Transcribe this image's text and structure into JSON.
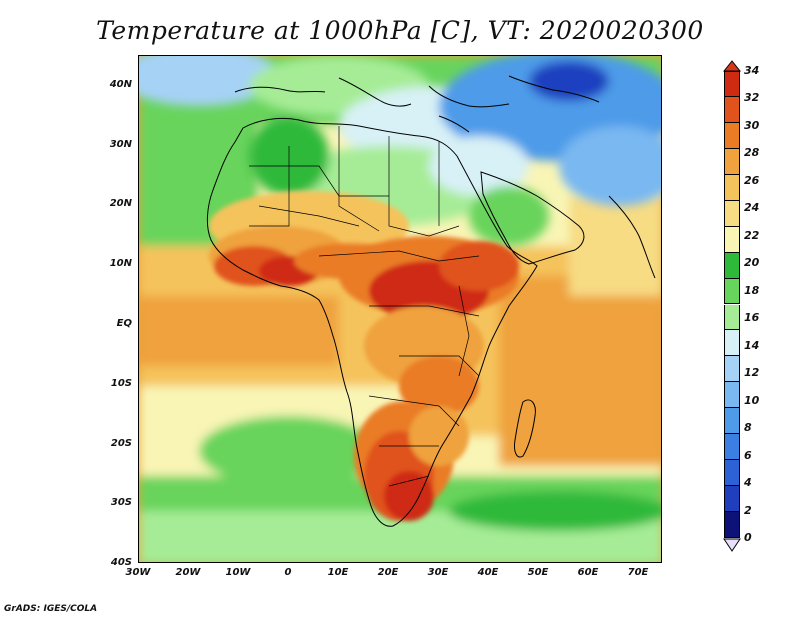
{
  "title": "Temperature at 1000hPa [C], VT: 2020020300",
  "footer": "GrADS: IGES/COLA",
  "map": {
    "lat_labels": [
      "40N",
      "30N",
      "20N",
      "10N",
      "EQ",
      "10S",
      "20S",
      "30S",
      "40S"
    ],
    "lon_labels": [
      "30W",
      "20W",
      "10W",
      "0",
      "10E",
      "20E",
      "30E",
      "40E",
      "50E",
      "60E",
      "70E"
    ],
    "lat_values": [
      40,
      30,
      20,
      10,
      0,
      -10,
      -20,
      -30,
      -40
    ],
    "lon_values": [
      -30,
      -20,
      -10,
      0,
      10,
      20,
      30,
      40,
      50,
      60,
      70
    ],
    "extent": {
      "lon": [
        -30,
        75
      ],
      "lat": [
        -40,
        45
      ]
    },
    "variable": "Temperature at 1000hPa",
    "units": "C",
    "valid_time": "2020020300"
  },
  "colorbar": {
    "levels": [
      0,
      2,
      4,
      6,
      8,
      10,
      12,
      14,
      16,
      18,
      20,
      22,
      24,
      26,
      28,
      30,
      32,
      34
    ],
    "labels": [
      "0",
      "2",
      "4",
      "6",
      "8",
      "10",
      "12",
      "14",
      "16",
      "18",
      "20",
      "22",
      "24",
      "26",
      "28",
      "30",
      "32",
      "34"
    ],
    "colors": [
      "#0c1278",
      "#1f3fbf",
      "#2d61d6",
      "#3b7fe2",
      "#4e9be9",
      "#79b8f1",
      "#a6d2f6",
      "#d8f1f6",
      "#a6ec96",
      "#67d45c",
      "#2fb93a",
      "#f9f5b5",
      "#f7dc84",
      "#f5c35b",
      "#efa23d",
      "#ea7c25",
      "#e0531c",
      "#cf2a12"
    ],
    "under_color": "#e8e0fa",
    "over_color": "#d8361c"
  },
  "colors": {
    "ocean_equatorial": "#efa23d",
    "ocean_warm_band": "#f5c35b",
    "ocean_mid": "#f9f5b5",
    "cool_green": "#67d45c",
    "land_hot": "#cf2a12",
    "sahara_blue": "#a6d2f6",
    "coastline": "#000000"
  }
}
